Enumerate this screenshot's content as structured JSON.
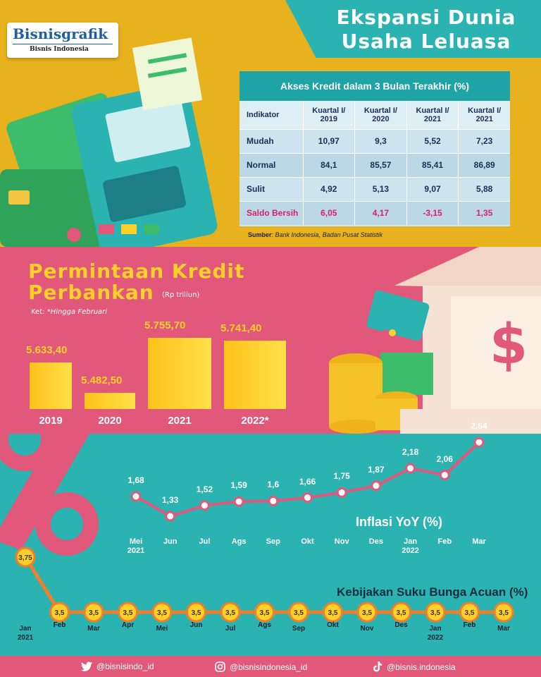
{
  "header": {
    "title_line1": "Ekspansi Dunia",
    "title_line2": "Usaha Leluasa",
    "logo_main": "Bisnisgrafik",
    "logo_sub": "Bisnis Indonesia"
  },
  "table": {
    "title": "Akses Kredit dalam 3 Bulan Terakhir (%)",
    "headers": [
      "Indikator",
      "Kuartal I/ 2019",
      "Kuartal I/ 2020",
      "Kuartal I/ 2021",
      "Kuartal I/ 2021"
    ],
    "rows": [
      [
        "Mudah",
        "10,97",
        "9,3",
        "5,52",
        "7,23"
      ],
      [
        "Normal",
        "84,1",
        "85,57",
        "85,41",
        "86,89"
      ],
      [
        "Sulit",
        "4,92",
        "5,13",
        "9,07",
        "5,88"
      ],
      [
        "Saldo Bersih",
        "6,05",
        "4,17",
        "-3,15",
        "1,35"
      ]
    ],
    "source_label": "Sumber",
    "source_text": ": Bank Indonesia, Badan Pusat Statistik"
  },
  "credit": {
    "title_line1": "Permintaan Kredit",
    "title_line2": "Perbankan",
    "unit": "(Rp triliun)",
    "note_label": "Ket:",
    "note_text": "*Hingga Februari",
    "years": [
      "2019",
      "2020",
      "2021",
      "2022*"
    ],
    "values_text": [
      "5.633,40",
      "5.482,50",
      "5.755,70",
      "5.741,40"
    ]
  },
  "chart_data": [
    {
      "type": "bar",
      "categories": [
        "2019",
        "2020",
        "2021",
        "2022*"
      ],
      "values": [
        5633.4,
        5482.5,
        5755.7,
        5741.4
      ],
      "title": "Permintaan Kredit Perbankan",
      "ylabel": "(Rp triliun)"
    },
    {
      "type": "line",
      "title": "Inflasi YoY (%)",
      "x": [
        "Mei 2021",
        "Jun",
        "Jul",
        "Ags",
        "Sep",
        "Okt",
        "Nov",
        "Des",
        "Jan 2022",
        "Feb",
        "Mar"
      ],
      "values": [
        1.68,
        1.33,
        1.52,
        1.59,
        1.6,
        1.66,
        1.75,
        1.87,
        2.18,
        2.06,
        2.64
      ],
      "value_labels": [
        "1,68",
        "1,33",
        "1,52",
        "1,59",
        "1,6",
        "1,66",
        "1,75",
        "1,87",
        "2,18",
        "2,06",
        "2,64"
      ],
      "line_color": "#e2587a"
    },
    {
      "type": "line",
      "title": "Kebijakan Suku Bunga Acuan (%)",
      "x": [
        "Jan 2021",
        "Feb",
        "Mar",
        "Apr",
        "Mei",
        "Jun",
        "Jul",
        "Ags",
        "Sep",
        "Okt",
        "Nov",
        "Des",
        "Jan 2022",
        "Feb",
        "Mar"
      ],
      "values": [
        3.75,
        3.5,
        3.5,
        3.5,
        3.5,
        3.5,
        3.5,
        3.5,
        3.5,
        3.5,
        3.5,
        3.5,
        3.5,
        3.5,
        3.5
      ],
      "value_labels": [
        "3,75",
        "3,5",
        "3,5",
        "3,5",
        "3,5",
        "3,5",
        "3,5",
        "3,5",
        "3,5",
        "3,5",
        "3,5",
        "3,5",
        "3,5",
        "3,5",
        "3,5"
      ],
      "line_color": "#f07f2a"
    }
  ],
  "inflation": {
    "months": [
      "Mei",
      "Jun",
      "Jul",
      "Ags",
      "Sep",
      "Okt",
      "Nov",
      "Des",
      "Jan",
      "Feb",
      "Mar"
    ],
    "years": [
      "2021",
      "",
      "",
      "",
      "",
      "",
      "",
      "",
      "2022",
      "",
      ""
    ]
  },
  "rate": {
    "months": [
      "Jan",
      "Feb",
      "Mar",
      "Apr",
      "Mei",
      "Jun",
      "Jul",
      "Ags",
      "Sep",
      "Okt",
      "Nov",
      "Des",
      "Jan",
      "Feb",
      "Mar"
    ],
    "years": [
      "2021",
      "",
      "",
      "",
      "",
      "",
      "",
      "",
      "",
      "",
      "",
      "",
      "2022",
      "",
      ""
    ]
  },
  "footer": {
    "twitter": "@bisnisindo_id",
    "instagram": "@bisnisindonesia_id",
    "tiktok": "@bisnis.indonesia"
  },
  "colors": {
    "teal": "#2bb3b1",
    "mustard": "#e8b21e",
    "pink": "#e2587a",
    "yellow": "#ffd02a"
  }
}
